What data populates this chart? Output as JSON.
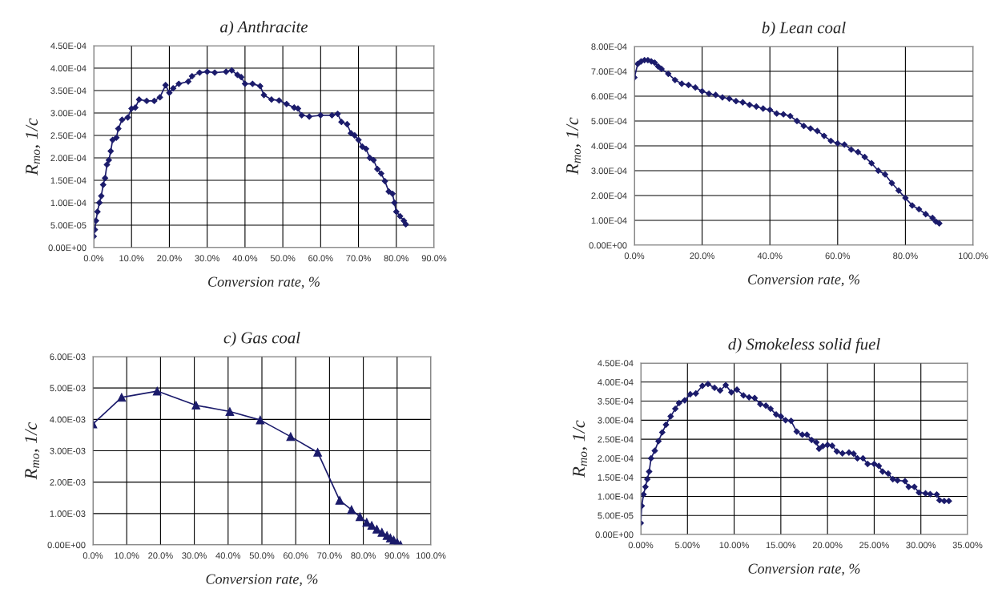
{
  "chart_data": [
    {
      "type": "line",
      "title": "a) Anthracite",
      "xlabel": "Conversion rate, %",
      "ylabel": "R$_{mo}$, 1/c",
      "marker": "diamond",
      "grid": true,
      "legend": false,
      "xlim": [
        0,
        90
      ],
      "xticks": [
        {
          "value": 0,
          "label": "0.0%"
        },
        {
          "value": 10,
          "label": "10.0%"
        },
        {
          "value": 20,
          "label": "20.0%"
        },
        {
          "value": 30,
          "label": "30.0%"
        },
        {
          "value": 40,
          "label": "40.0%"
        },
        {
          "value": 50,
          "label": "50.0%"
        },
        {
          "value": 60,
          "label": "60.0%"
        },
        {
          "value": 70,
          "label": "70.0%"
        },
        {
          "value": 80,
          "label": "80.0%"
        },
        {
          "value": 90,
          "label": "90.0%"
        }
      ],
      "ylim": [
        0,
        0.00045
      ],
      "yticks": [
        {
          "value": 0,
          "label": "0.00E+00"
        },
        {
          "value": 5e-05,
          "label": "5.00E-05"
        },
        {
          "value": 0.0001,
          "label": "1.00E-04"
        },
        {
          "value": 0.00015,
          "label": "1.50E-04"
        },
        {
          "value": 0.0002,
          "label": "2.00E-04"
        },
        {
          "value": 0.00025,
          "label": "2.50E-04"
        },
        {
          "value": 0.0003,
          "label": "3.00E-04"
        },
        {
          "value": 0.00035,
          "label": "3.50E-04"
        },
        {
          "value": 0.0004,
          "label": "4.00E-04"
        },
        {
          "value": 0.00045,
          "label": "4.50E-04"
        }
      ],
      "series": [
        {
          "color": "#1b1b6b",
          "x": [
            0,
            0.3,
            0.6,
            1,
            1.5,
            2,
            2.5,
            3,
            3.5,
            4,
            4.5,
            5,
            6,
            6.5,
            7.5,
            9,
            10,
            11,
            12,
            14,
            16,
            17.5,
            19,
            20,
            21,
            22.5,
            25,
            26,
            28,
            30,
            32,
            35,
            36.5,
            38,
            39,
            40,
            42,
            44,
            45,
            47,
            49,
            51,
            53,
            54,
            55,
            57,
            60,
            63,
            64.5,
            65.5,
            67,
            68,
            69,
            70,
            71,
            72,
            73,
            74,
            75,
            76,
            77,
            78,
            79,
            79.5,
            80,
            81,
            82,
            82.5
          ],
          "values": [
            2.5e-05,
            4e-05,
            6e-05,
            8e-05,
            0.0001,
            0.000115,
            0.00014,
            0.000155,
            0.000185,
            0.000195,
            0.000215,
            0.00024,
            0.000245,
            0.000265,
            0.000285,
            0.00029,
            0.00031,
            0.000312,
            0.00033,
            0.000327,
            0.000327,
            0.000335,
            0.000362,
            0.000345,
            0.000355,
            0.000365,
            0.00037,
            0.000382,
            0.00039,
            0.000392,
            0.00039,
            0.000392,
            0.000395,
            0.000385,
            0.00038,
            0.000365,
            0.000365,
            0.00036,
            0.00034,
            0.00033,
            0.000328,
            0.00032,
            0.000312,
            0.00031,
            0.000295,
            0.000292,
            0.000295,
            0.000295,
            0.000298,
            0.00028,
            0.000275,
            0.000255,
            0.00025,
            0.00024,
            0.000225,
            0.00022,
            0.0002,
            0.000195,
            0.000175,
            0.000165,
            0.000148,
            0.000125,
            0.00012,
            0.0001,
            8e-05,
            7e-05,
            6e-05,
            5.2e-05
          ]
        }
      ]
    },
    {
      "type": "line",
      "title": "b) Lean coal",
      "xlabel": "Conversion rate, %",
      "ylabel": "R$_{mo}$, 1/c",
      "marker": "diamond",
      "grid": true,
      "legend": false,
      "xlim": [
        0,
        100
      ],
      "xticks": [
        {
          "value": 0,
          "label": "0.0%"
        },
        {
          "value": 20,
          "label": "20.0%"
        },
        {
          "value": 40,
          "label": "40.0%"
        },
        {
          "value": 60,
          "label": "60.0%"
        },
        {
          "value": 80,
          "label": "80.0%"
        },
        {
          "value": 100,
          "label": "100.0%"
        }
      ],
      "ylim": [
        0,
        0.0008
      ],
      "yticks": [
        {
          "value": 0,
          "label": "0.00E+00"
        },
        {
          "value": 0.0001,
          "label": "1.00E-04"
        },
        {
          "value": 0.0002,
          "label": "2.00E-04"
        },
        {
          "value": 0.0003,
          "label": "3.00E-04"
        },
        {
          "value": 0.0004,
          "label": "4.00E-04"
        },
        {
          "value": 0.0005,
          "label": "5.00E-04"
        },
        {
          "value": 0.0006,
          "label": "6.00E-04"
        },
        {
          "value": 0.0007,
          "label": "7.00E-04"
        },
        {
          "value": 0.0008,
          "label": "8.00E-04"
        }
      ],
      "series": [
        {
          "color": "#1b1b6b",
          "x": [
            0,
            1,
            2,
            3,
            4,
            5,
            6,
            7,
            8,
            10,
            12,
            14,
            16,
            18,
            20,
            22,
            24,
            26,
            28,
            30,
            32,
            34,
            36,
            38,
            40,
            42,
            44,
            46,
            48,
            50,
            52,
            54,
            56,
            58,
            60,
            62,
            64,
            66,
            68,
            70,
            72,
            74,
            76,
            78,
            80,
            82,
            84,
            86,
            88,
            89,
            90
          ],
          "values": [
            0.000675,
            0.00073,
            0.00074,
            0.000745,
            0.000745,
            0.00074,
            0.000735,
            0.00072,
            0.00071,
            0.00069,
            0.000665,
            0.00065,
            0.000645,
            0.000635,
            0.00062,
            0.00061,
            0.000605,
            0.000595,
            0.00059,
            0.00058,
            0.000575,
            0.000565,
            0.000558,
            0.00055,
            0.000545,
            0.00053,
            0.000527,
            0.00052,
            0.0005,
            0.00048,
            0.00047,
            0.00046,
            0.00044,
            0.00042,
            0.00041,
            0.000405,
            0.000385,
            0.000375,
            0.000355,
            0.00033,
            0.0003,
            0.000285,
            0.00025,
            0.00022,
            0.00019,
            0.00016,
            0.000145,
            0.000125,
            0.00011,
            9.5e-05,
            8.8e-05
          ]
        }
      ]
    },
    {
      "type": "line",
      "title": "c) Gas coal",
      "xlabel": "Conversion rate, %",
      "ylabel": "R$_{mo}$, 1/c",
      "marker": "triangle",
      "grid": true,
      "legend": false,
      "xlim": [
        0,
        100
      ],
      "xticks": [
        {
          "value": 0,
          "label": "0.0%"
        },
        {
          "value": 10,
          "label": "10.0%"
        },
        {
          "value": 20,
          "label": "20.0%"
        },
        {
          "value": 30,
          "label": "30.0%"
        },
        {
          "value": 40,
          "label": "40.0%"
        },
        {
          "value": 50,
          "label": "50.0%"
        },
        {
          "value": 60,
          "label": "60.0%"
        },
        {
          "value": 70,
          "label": "70.0%"
        },
        {
          "value": 80,
          "label": "80.0%"
        },
        {
          "value": 90,
          "label": "90.0%"
        },
        {
          "value": 100,
          "label": "100.0%"
        }
      ],
      "ylim": [
        0,
        0.006
      ],
      "yticks": [
        {
          "value": 0,
          "label": "0.00E+00"
        },
        {
          "value": 0.001,
          "label": "1.00E-03"
        },
        {
          "value": 0.002,
          "label": "2.00E-03"
        },
        {
          "value": 0.003,
          "label": "3.00E-03"
        },
        {
          "value": 0.004,
          "label": "4.00E-03"
        },
        {
          "value": 0.005,
          "label": "5.00E-03"
        },
        {
          "value": 0.006,
          "label": "6.00E-03"
        }
      ],
      "series": [
        {
          "color": "#1b1b6b",
          "x": [
            0,
            8.5,
            19,
            30.5,
            40.5,
            49.5,
            58.5,
            66.5,
            73,
            76.5,
            79,
            81,
            82.5,
            84,
            85.5,
            87,
            88,
            89,
            90,
            91
          ],
          "values": [
            0.00385,
            0.0047,
            0.0049,
            0.00445,
            0.00425,
            0.00398,
            0.00345,
            0.00295,
            0.00142,
            0.00112,
            0.0009,
            0.00072,
            0.00062,
            0.0005,
            0.0004,
            0.0003,
            0.00022,
            0.00015,
            8e-05,
            0
          ]
        }
      ]
    },
    {
      "type": "line",
      "title": "d) Smokeless solid fuel",
      "xlabel": "Conversion rate, %",
      "ylabel": "R$_{mo}$, 1/c",
      "marker": "diamond",
      "grid": true,
      "legend": false,
      "xlim": [
        0,
        35
      ],
      "xticks": [
        {
          "value": 0,
          "label": "0.00%"
        },
        {
          "value": 5,
          "label": "5.00%"
        },
        {
          "value": 10,
          "label": "10.00%"
        },
        {
          "value": 15,
          "label": "15.00%"
        },
        {
          "value": 20,
          "label": "20.00%"
        },
        {
          "value": 25,
          "label": "25.00%"
        },
        {
          "value": 30,
          "label": "30.00%"
        },
        {
          "value": 35,
          "label": "35.00%"
        }
      ],
      "ylim": [
        0,
        0.00045
      ],
      "yticks": [
        {
          "value": 0,
          "label": "0.00E+00"
        },
        {
          "value": 5e-05,
          "label": "5.00E-05"
        },
        {
          "value": 0.0001,
          "label": "1.00E-04"
        },
        {
          "value": 0.00015,
          "label": "1.50E-04"
        },
        {
          "value": 0.0002,
          "label": "2.00E-04"
        },
        {
          "value": 0.00025,
          "label": "2.50E-04"
        },
        {
          "value": 0.0003,
          "label": "3.00E-04"
        },
        {
          "value": 0.00035,
          "label": "3.50E-04"
        },
        {
          "value": 0.0004,
          "label": "4.00E-04"
        },
        {
          "value": 0.00045,
          "label": "4.50E-04"
        }
      ],
      "series": [
        {
          "color": "#1b1b6b",
          "x": [
            0,
            0.1,
            0.3,
            0.5,
            0.7,
            0.9,
            1.1,
            1.5,
            1.9,
            2.3,
            2.7,
            3.2,
            3.7,
            4.1,
            4.7,
            5.3,
            5.9,
            6.6,
            7.2,
            7.9,
            8.5,
            9.1,
            9.7,
            10.3,
            11,
            11.6,
            12.2,
            12.8,
            13.4,
            13.9,
            14.5,
            15,
            15.5,
            16.1,
            16.7,
            17.3,
            17.8,
            18.3,
            18.8,
            19.1,
            19.5,
            20,
            20.5,
            21,
            21.6,
            22.3,
            22.8,
            23.2,
            23.8,
            24.3,
            25,
            25.5,
            25.9,
            26.5,
            27,
            27.5,
            28.3,
            28.7,
            29.3,
            29.8,
            30.5,
            31,
            31.7,
            32,
            32.5,
            33
          ],
          "values": [
            3e-05,
            7.5e-05,
            0.000105,
            0.000125,
            0.000145,
            0.000165,
            0.0002,
            0.00022,
            0.000245,
            0.000268,
            0.000288,
            0.00031,
            0.00033,
            0.000345,
            0.000352,
            0.000368,
            0.00037,
            0.00039,
            0.000395,
            0.000385,
            0.000378,
            0.000392,
            0.000373,
            0.00038,
            0.000365,
            0.00036,
            0.000358,
            0.000342,
            0.000338,
            0.00033,
            0.000315,
            0.00031,
            0.0003,
            0.000298,
            0.00027,
            0.000262,
            0.000262,
            0.000248,
            0.000242,
            0.000225,
            0.000232,
            0.000235,
            0.000233,
            0.000218,
            0.000213,
            0.000215,
            0.000212,
            0.0002,
            0.0002,
            0.000185,
            0.000185,
            0.00018,
            0.000165,
            0.00016,
            0.000145,
            0.000142,
            0.00014,
            0.000125,
            0.000125,
            0.00011,
            0.000108,
            0.000106,
            0.000105,
            9e-05,
            8.8e-05,
            8.8e-05
          ]
        }
      ]
    }
  ]
}
